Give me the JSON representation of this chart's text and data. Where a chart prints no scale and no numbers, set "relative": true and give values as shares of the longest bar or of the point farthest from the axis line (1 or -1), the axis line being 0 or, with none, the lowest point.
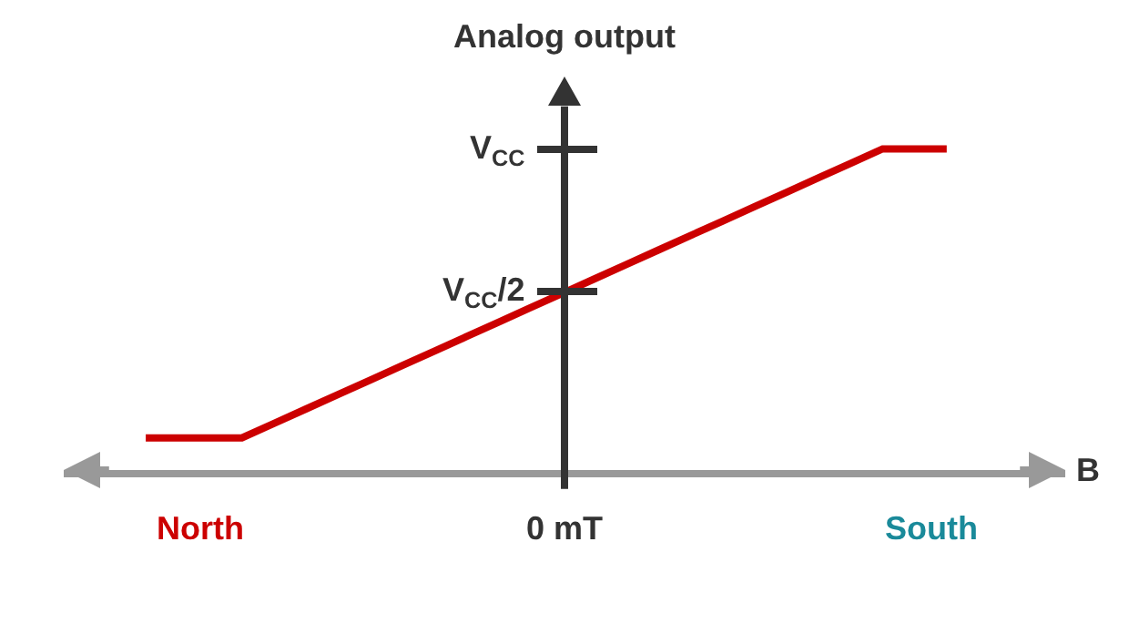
{
  "chart_data": {
    "type": "line",
    "ylabel": "Analog output",
    "xlabel": "B",
    "relative": true,
    "categories": [
      null,
      null,
      null,
      null,
      null,
      null,
      null,
      null,
      null,
      null,
      null,
      null,
      null,
      null,
      null,
      null,
      null,
      null,
      null,
      null,
      null,
      null,
      null,
      null,
      null,
      null
    ],
    "series": [
      {
        "color": "#cc0000",
        "values": [
          0.1,
          0.1,
          0.1,
          0.1,
          0.145,
          0.19,
          0.235,
          0.28,
          0.325,
          0.37,
          0.415,
          0.46,
          0.505,
          0.55,
          0.595,
          0.64,
          0.685,
          0.73,
          0.775,
          0.82,
          0.865,
          0.91,
          0.955,
          1,
          1,
          1
        ]
      }
    ],
    "annotations": [
      "V$_{CC}$",
      "V$_{CC}$/2",
      "North",
      "0 mT",
      "South"
    ],
    "grid": false,
    "marker": "none",
    "line_style": "solid"
  }
}
